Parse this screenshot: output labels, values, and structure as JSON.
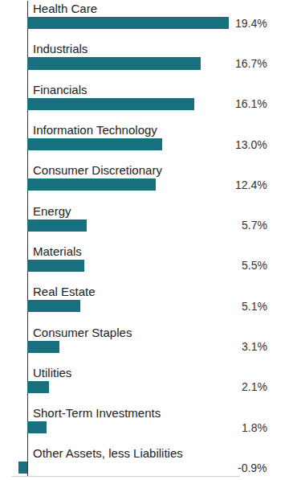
{
  "chart_data": {
    "type": "bar",
    "orientation": "horizontal",
    "categories": [
      "Health Care",
      "Industrials",
      "Financials",
      "Information Technology",
      "Consumer Discretionary",
      "Energy",
      "Materials",
      "Real Estate",
      "Consumer Staples",
      "Utilities",
      "Short-Term Investments",
      "Other Assets, less Liabilities"
    ],
    "values": [
      19.4,
      16.7,
      16.1,
      13.0,
      12.4,
      5.7,
      5.5,
      5.1,
      3.1,
      2.1,
      1.8,
      -0.9
    ],
    "value_labels": [
      "19.4%",
      "16.7%",
      "16.1%",
      "13.0%",
      "12.4%",
      "5.7%",
      "5.5%",
      "5.1%",
      "3.1%",
      "2.1%",
      "1.8%",
      "-0.9%"
    ],
    "data_labels": true,
    "color": "#17707e",
    "xlim": [
      -1.5,
      20.5
    ],
    "xticks": [
      0
    ],
    "grid": true,
    "tick_labels": false
  }
}
